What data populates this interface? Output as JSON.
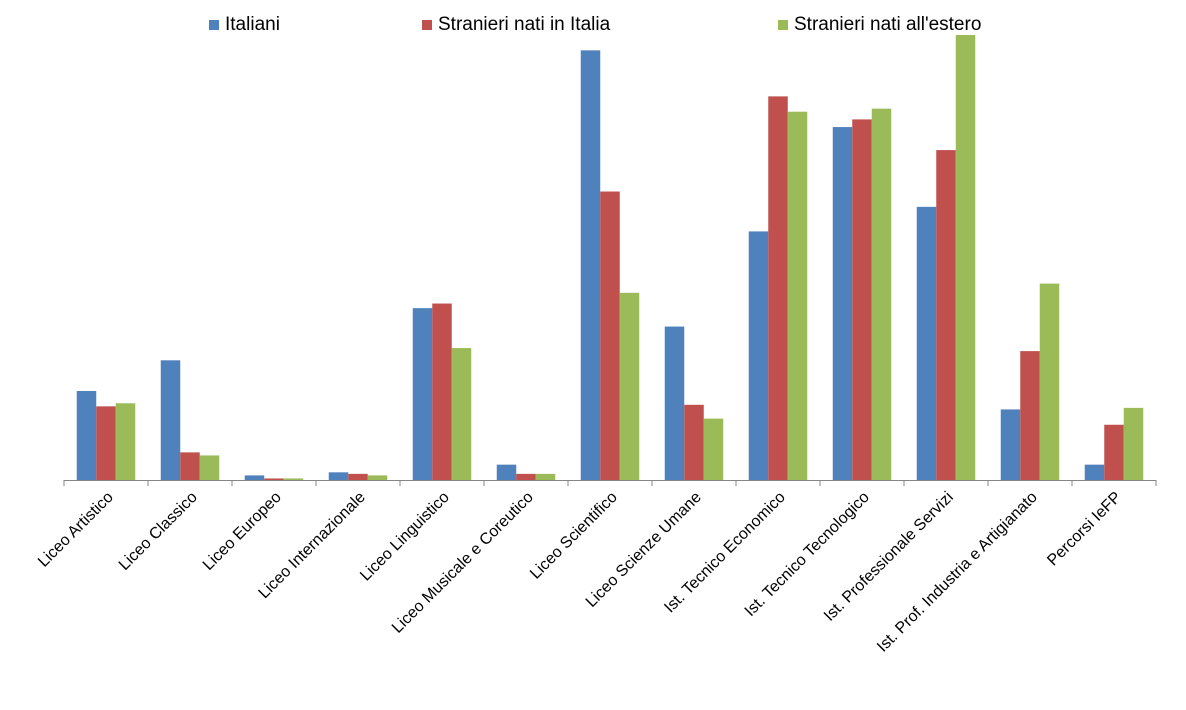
{
  "chart_data": {
    "type": "bar",
    "title": "",
    "xlabel": "",
    "ylabel": "",
    "ylim": [
      0,
      29
    ],
    "grid": false,
    "legend_position": "top",
    "categories": [
      "Liceo Artistico",
      "Liceo Classico",
      "Liceo Europeo",
      "Liceo Internazionale",
      "Liceo Linguistico",
      "Liceo Musicale e Coreutico",
      "Liceo Scientifico",
      "Liceo Scienze Umane",
      "Ist. Tecnico Economico",
      "Ist. Tecnico Tecnologico",
      "Ist. Professionale Servizi",
      "Ist. Prof. Industria e Artigianato",
      "Percorsi IeFP"
    ],
    "series": [
      {
        "name": "Italiani",
        "color": "#4F81BD",
        "values": [
          5.8,
          7.8,
          0.3,
          0.5,
          11.2,
          1.0,
          28.0,
          10.0,
          16.2,
          23.0,
          17.8,
          4.6,
          1.0
        ]
      },
      {
        "name": "Stranieri nati in Italia",
        "color": "#C0504D",
        "values": [
          4.8,
          1.8,
          0.1,
          0.4,
          11.5,
          0.4,
          18.8,
          4.9,
          25.0,
          23.5,
          21.5,
          8.4,
          3.6
        ]
      },
      {
        "name": "Stranieri nati all'estero",
        "color": "#9BBB59",
        "values": [
          5.0,
          1.6,
          0.1,
          0.3,
          8.6,
          0.4,
          12.2,
          4.0,
          24.0,
          24.2,
          29.0,
          12.8,
          4.7
        ]
      }
    ]
  }
}
